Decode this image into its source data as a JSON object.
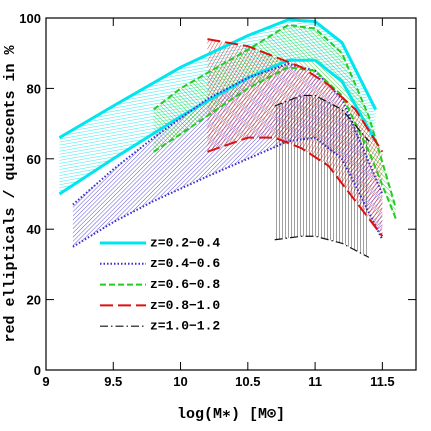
{
  "chart_data": {
    "type": "band",
    "xlabel": "log(M∗) [M⊙]",
    "ylabel": "red ellipticals / quiescents in %",
    "xlim": [
      9,
      11.75
    ],
    "ylim": [
      0,
      100
    ],
    "xticks": [
      9,
      9.5,
      10,
      10.5,
      11,
      11.5
    ],
    "yticks": [
      0,
      20,
      40,
      60,
      80,
      100
    ],
    "series": [
      {
        "name": "z=0.2−0.4",
        "color": "#00e5ee",
        "style": "solid",
        "x": [
          9.1,
          9.5,
          10,
          10.5,
          10.8,
          11,
          11.2,
          11.45
        ],
        "upper": [
          66,
          75,
          86,
          95,
          99.5,
          99,
          93,
          74
        ],
        "lower": [
          50,
          60,
          72,
          83,
          88,
          88,
          82,
          65
        ]
      },
      {
        "name": "z=0.4−0.6",
        "color": "#3a2bd0",
        "style": "dotted",
        "x": [
          9.2,
          9.5,
          9.8,
          10.2,
          10.5,
          10.8,
          11,
          11.2,
          11.5
        ],
        "upper": [
          47,
          57,
          66,
          77,
          83,
          87,
          85,
          77,
          50
        ],
        "lower": [
          35,
          42,
          48,
          55,
          60,
          65,
          66,
          60,
          37
        ]
      },
      {
        "name": "z=0.6−0.8",
        "color": "#22cc22",
        "style": "dashed",
        "x": [
          9.8,
          10,
          10.5,
          10.8,
          11,
          11.2,
          11.4,
          11.6
        ],
        "upper": [
          74,
          80,
          91,
          98,
          97,
          90,
          72,
          46
        ],
        "lower": [
          62,
          67,
          80,
          86,
          85,
          78,
          62,
          43
        ]
      },
      {
        "name": "z=0.8−1.0",
        "color": "#dd1111",
        "style": "longdash",
        "x": [
          10.2,
          10.5,
          10.7,
          10.9,
          11.1,
          11.3,
          11.5
        ],
        "upper": [
          94,
          92,
          89,
          86,
          81,
          74,
          62
        ],
        "lower": [
          62,
          66,
          66,
          63,
          58,
          48,
          38
        ]
      },
      {
        "name": "z=1.0−1.2",
        "color": "#111111",
        "style": "dashdot",
        "x": [
          10.7,
          10.9,
          11,
          11.2,
          11.4
        ],
        "upper": [
          75,
          78,
          78,
          74,
          65
        ],
        "lower": [
          37,
          38,
          38,
          36,
          32
        ]
      }
    ]
  }
}
